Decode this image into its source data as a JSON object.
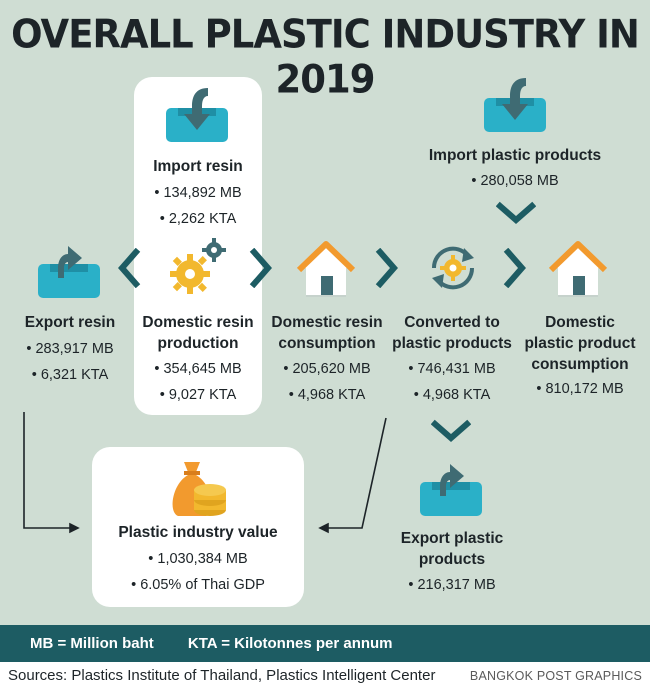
{
  "title": "OVERALL PLASTIC INDUSTRY IN 2019",
  "nodes": {
    "import_resin": {
      "label": "Import resin",
      "values": [
        "• 134,892 MB",
        "• 2,262 KTA"
      ]
    },
    "import_products": {
      "label": "Import plastic products",
      "values": [
        "• 280,058 MB"
      ]
    },
    "export_resin": {
      "label": "Export resin",
      "values": [
        "• 283,917 MB",
        "• 6,321 KTA"
      ]
    },
    "domestic_resin_production": {
      "label_lines": [
        "Domestic resin",
        "production"
      ],
      "values": [
        "• 354,645 MB",
        "• 9,027 KTA"
      ]
    },
    "domestic_resin_consumption": {
      "label_lines": [
        "Domestic resin",
        "consumption"
      ],
      "values": [
        "• 205,620 MB",
        "• 4,968 KTA"
      ]
    },
    "converted": {
      "label_lines": [
        "Converted to",
        "plastic products"
      ],
      "values": [
        "• 746,431 MB",
        "• 4,968 KTA"
      ]
    },
    "domestic_product_consumption": {
      "label_lines": [
        "Domestic",
        "plastic product",
        "consumption"
      ],
      "values": [
        "• 810,172 MB"
      ]
    },
    "export_products": {
      "label_lines": [
        "Export plastic",
        "products"
      ],
      "values": [
        "• 216,317 MB"
      ]
    },
    "industry_value": {
      "label": "Plastic industry value",
      "values": [
        "• 1,030,384 MB",
        "• 6.05% of Thai GDP"
      ]
    }
  },
  "footer": {
    "mb": "MB = Million baht",
    "kta": "KTA = Kilotonnes per annum"
  },
  "source": "Sources: Plastics Institute of Thailand, Plastics Intelligent Center",
  "credit": "BANGKOK POST GRAPHICS",
  "colors": {
    "background": "#cfddd3",
    "teal": "#1d5c63",
    "cyan": "#2ab0c8",
    "orange": "#f29a2e",
    "gold": "#f2b82e",
    "dark": "#1d2428"
  }
}
